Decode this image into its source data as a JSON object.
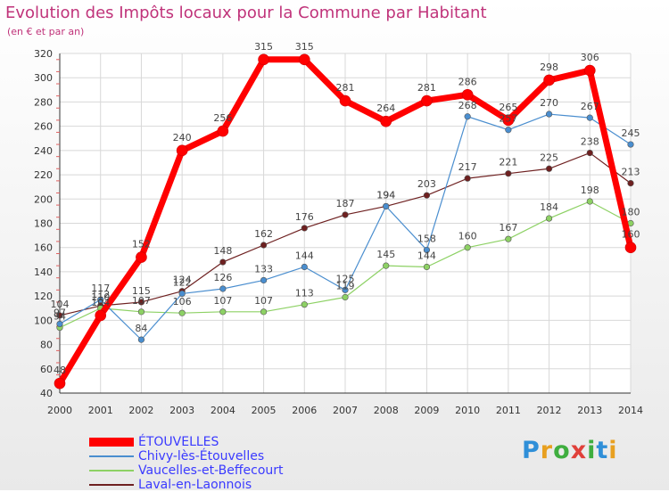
{
  "header": {
    "title": "Evolution des Impôts locaux pour la Commune par Habitant",
    "subtitle": "(en € et par an)"
  },
  "logo": {
    "text": "Proxiti",
    "letter_colors": [
      "#2f8fd8",
      "#e8a020",
      "#3fae3f",
      "#e0403a",
      "#3fae3f",
      "#2f8fd8",
      "#e8a020"
    ]
  },
  "chart_data": {
    "type": "line",
    "x": [
      2000,
      2001,
      2002,
      2003,
      2004,
      2005,
      2006,
      2007,
      2008,
      2009,
      2010,
      2011,
      2012,
      2013,
      2014
    ],
    "ylim": [
      40,
      320
    ],
    "yticks": [
      40,
      60,
      80,
      100,
      120,
      140,
      160,
      180,
      200,
      220,
      240,
      260,
      280,
      300,
      320
    ],
    "grid": true,
    "legend_position": "bottom-left",
    "series": [
      {
        "name": "ÉTOUVELLES",
        "color": "#ff0000",
        "values": [
          48,
          104,
          152,
          240,
          256,
          315,
          315,
          281,
          264,
          281,
          286,
          265,
          298,
          306,
          160
        ]
      },
      {
        "name": "Chivy-lès-Étouvelles",
        "color": "#4a8ecf",
        "values": [
          97,
          117,
          84,
          122,
          126,
          133,
          144,
          125,
          194,
          158,
          268,
          257,
          270,
          267,
          245
        ]
      },
      {
        "name": "Vaucelles-et-Beffecourt",
        "color": "#8dd164",
        "values": [
          94,
          110,
          107,
          106,
          107,
          107,
          113,
          119,
          145,
          144,
          160,
          167,
          184,
          198,
          180
        ]
      },
      {
        "name": "Laval-en-Laonnois",
        "color": "#6e2020",
        "values": [
          104,
          112,
          115,
          124,
          148,
          162,
          176,
          187,
          194,
          203,
          217,
          221,
          225,
          238,
          213
        ]
      }
    ]
  }
}
